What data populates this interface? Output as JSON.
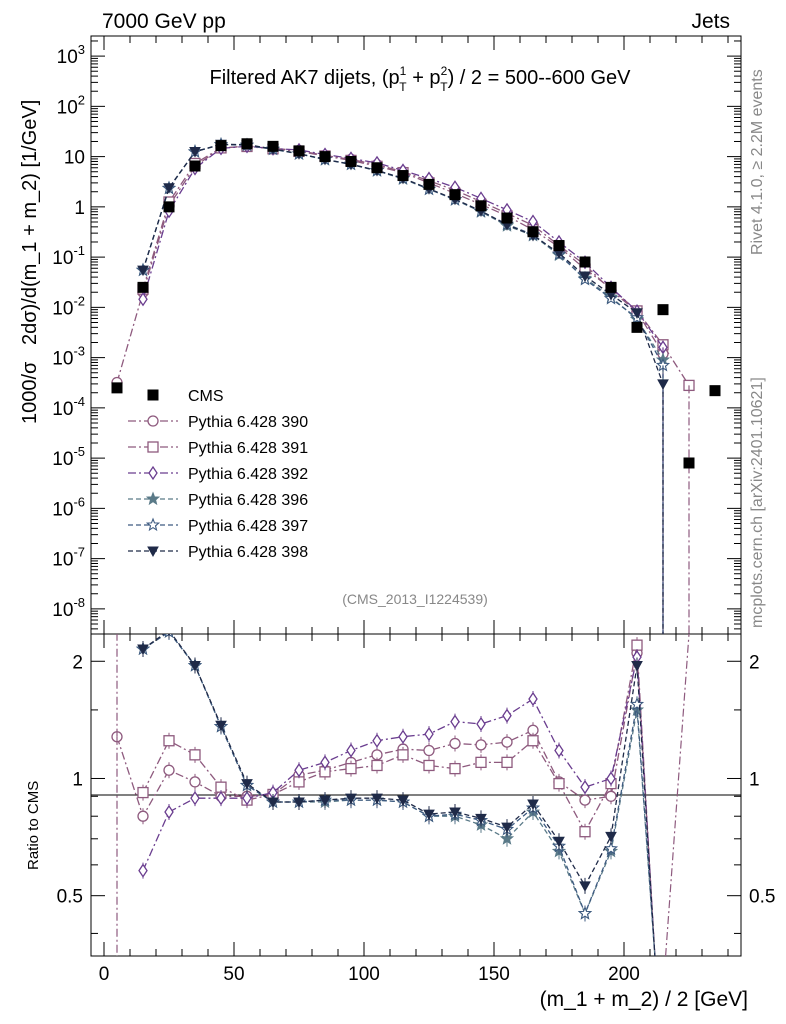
{
  "header": {
    "left": "7000 GeV pp",
    "right": "Jets",
    "title_main": "Filtered AK7 dijets, (p",
    "title_sup1": "1",
    "title_sub1": "T",
    "title_plus": " + p",
    "title_sup2": "2",
    "title_sub2": "T",
    "title_tail": ") / 2 = 500--600 GeV",
    "side_rivet": "Rivet 4.1.0, ≥ 2.2M events",
    "side_mcplots": "mcplots.cern.ch [arXiv:2401.10621]",
    "analysis_id": "(CMS_2013_I1224539)"
  },
  "chart_data": {
    "type": "line",
    "title": "Filtered AK7 dijets, (pT1 + pT2) / 2 = 500--600 GeV",
    "xlabel": "(m_1 + m_2) / 2 [GeV]",
    "ylabel": "1000/σ   2dσ)/d(m_1 + m_2) [1/GeV]",
    "ratio_ylabel": "Ratio to CMS",
    "xlim": [
      -5,
      245
    ],
    "ylim_log10": [
      -8.5,
      3.4
    ],
    "ratio_ylim": [
      0.35,
      2.35
    ],
    "x_ticks": [
      "0",
      "50",
      "100",
      "150",
      "200"
    ],
    "y_ticks": [
      "10^-8",
      "10^-7",
      "10^-6",
      "10^-5",
      "10^-4",
      "10^-3",
      "10^-2",
      "10^-1",
      "1",
      "10",
      "10^2",
      "10^3"
    ],
    "ratio_ticks": [
      "0.5",
      "1",
      "2"
    ],
    "x": [
      5,
      15,
      25,
      35,
      45,
      55,
      65,
      75,
      85,
      95,
      105,
      115,
      125,
      135,
      145,
      155,
      165,
      175,
      185,
      195,
      205,
      215,
      225,
      235
    ],
    "cms": {
      "name": "CMS",
      "color": "#000000",
      "values": [
        0.00025,
        0.025,
        1.0,
        6.5,
        16.5,
        18.0,
        16.0,
        13.0,
        10.0,
        8.0,
        6.0,
        4.2,
        2.8,
        1.75,
        1.05,
        0.6,
        0.32,
        0.17,
        0.08,
        0.025,
        0.004,
        0.009,
        8e-06,
        0.00022
      ]
    },
    "series": [
      {
        "name": "Pythia 6.428 390",
        "color": "#8e5a7e",
        "marker": "circle-open",
        "dash": "8,3,2,3",
        "values": [
          0.00032,
          0.02,
          1.05,
          6.4,
          14.8,
          16.2,
          14.6,
          13.2,
          10.5,
          8.8,
          6.9,
          5.0,
          3.3,
          2.15,
          1.28,
          0.74,
          0.43,
          0.17,
          0.07,
          0.022,
          0.0082,
          0.0012,
          null,
          null
        ]
      },
      {
        "name": "Pythia 6.428 391",
        "color": "#8e5a7e",
        "marker": "square-open",
        "dash": "8,3,2,3",
        "values": [
          null,
          0.023,
          1.25,
          7.3,
          14.9,
          15.9,
          14.3,
          12.7,
          10.3,
          8.4,
          6.4,
          4.8,
          3.0,
          1.85,
          1.12,
          0.66,
          0.35,
          0.16,
          0.058,
          0.024,
          0.0085,
          0.0018,
          0.00028,
          null
        ]
      },
      {
        "name": "Pythia 6.428 392",
        "color": "#6a3d8f",
        "marker": "diamond-open",
        "dash": "8,3,2,3",
        "values": [
          null,
          0.0145,
          0.82,
          5.8,
          14.6,
          16.0,
          14.4,
          13.6,
          11.0,
          9.2,
          7.5,
          5.3,
          3.65,
          2.45,
          1.47,
          0.87,
          0.51,
          0.2,
          0.079,
          0.025,
          0.0084,
          0.0016,
          null,
          null
        ]
      },
      {
        "name": "Pythia 6.428 396",
        "color": "#5a7a88",
        "marker": "star-filled",
        "dash": "5,3",
        "values": [
          null,
          0.055,
          2.35,
          12.5,
          17.3,
          16.8,
          14.0,
          11.3,
          8.7,
          7.0,
          5.2,
          3.6,
          2.25,
          1.38,
          0.8,
          0.42,
          0.27,
          0.11,
          0.038,
          0.016,
          0.0058,
          0.0009,
          null,
          null
        ]
      },
      {
        "name": "Pythia 6.428 397",
        "color": "#3d5a80",
        "marker": "star-open",
        "dash": "5,3",
        "values": [
          null,
          0.055,
          2.35,
          12.5,
          17.4,
          17.0,
          14.1,
          11.4,
          8.8,
          7.1,
          5.3,
          3.7,
          2.25,
          1.4,
          0.82,
          0.45,
          0.28,
          0.115,
          0.036,
          0.015,
          0.0062,
          0.0007,
          null,
          null
        ]
      },
      {
        "name": "Pythia 6.428 398",
        "color": "#1f2a48",
        "marker": "triangle-down-filled",
        "dash": "5,3",
        "values": [
          null,
          0.055,
          2.4,
          12.6,
          17.6,
          17.3,
          14.2,
          11.4,
          8.8,
          7.0,
          5.3,
          3.7,
          2.3,
          1.42,
          0.83,
          0.44,
          0.27,
          0.12,
          0.042,
          0.018,
          0.0078,
          0.0003,
          null,
          null
        ]
      }
    ],
    "ratios": [
      {
        "name": "Pythia 6.428 390",
        "values": [
          1.28,
          0.8,
          1.05,
          0.98,
          0.9,
          0.9,
          0.91,
          1.02,
          1.05,
          1.1,
          1.15,
          1.19,
          1.18,
          1.23,
          1.22,
          1.24,
          1.33,
          0.98,
          0.88,
          0.9,
          2.1,
          null,
          null,
          null
        ]
      },
      {
        "name": "Pythia 6.428 391",
        "values": [
          null,
          0.92,
          1.25,
          1.15,
          0.95,
          0.88,
          0.91,
          0.98,
          1.04,
          1.06,
          1.08,
          1.15,
          1.08,
          1.06,
          1.1,
          1.1,
          1.25,
          0.97,
          0.73,
          0.97,
          2.2,
          null,
          null,
          null
        ]
      },
      {
        "name": "Pythia 6.428 392",
        "values": [
          null,
          0.58,
          0.82,
          0.89,
          0.89,
          0.89,
          0.92,
          1.05,
          1.1,
          1.18,
          1.25,
          1.28,
          1.3,
          1.4,
          1.38,
          1.45,
          1.6,
          1.18,
          0.95,
          1.0,
          2.05,
          null,
          null,
          null
        ]
      },
      {
        "name": "Pythia 6.428 396",
        "values": [
          null,
          2.15,
          2.38,
          1.95,
          1.36,
          0.96,
          0.87,
          0.87,
          0.87,
          0.88,
          0.88,
          0.87,
          0.8,
          0.8,
          0.76,
          0.7,
          0.82,
          0.65,
          0.45,
          0.65,
          1.5,
          null,
          null,
          null
        ]
      },
      {
        "name": "Pythia 6.428 397",
        "values": [
          null,
          2.15,
          2.38,
          1.95,
          1.36,
          0.96,
          0.87,
          0.87,
          0.88,
          0.88,
          0.88,
          0.87,
          0.8,
          0.81,
          0.78,
          0.74,
          0.84,
          0.67,
          0.45,
          0.66,
          1.55,
          null,
          null,
          null
        ]
      },
      {
        "name": "Pythia 6.428 398",
        "values": [
          null,
          2.15,
          2.4,
          1.95,
          1.37,
          0.97,
          0.87,
          0.87,
          0.88,
          0.89,
          0.89,
          0.88,
          0.81,
          0.82,
          0.79,
          0.75,
          0.86,
          0.69,
          0.53,
          0.71,
          1.95,
          null,
          null,
          null
        ]
      }
    ]
  }
}
